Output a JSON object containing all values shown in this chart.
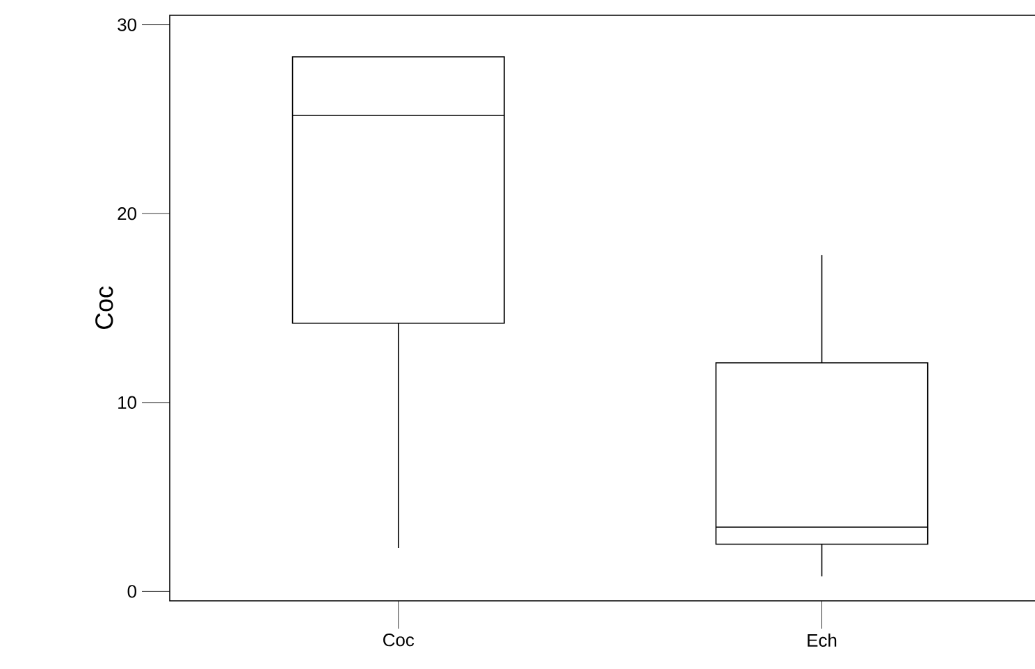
{
  "chart_data": {
    "type": "box",
    "ylabel": "Coc",
    "categories": [
      "Coc",
      "Ech"
    ],
    "boxes": [
      {
        "low": 2.3,
        "q1": 14.2,
        "median": 25.2,
        "q3": 28.3,
        "high": 28.3
      },
      {
        "low": 0.8,
        "q1": 2.5,
        "median": 3.4,
        "q3": 12.1,
        "high": 17.8
      }
    ],
    "ylim": [
      -0.5,
      30.5
    ],
    "yticks": [
      0,
      10,
      20,
      30
    ]
  }
}
